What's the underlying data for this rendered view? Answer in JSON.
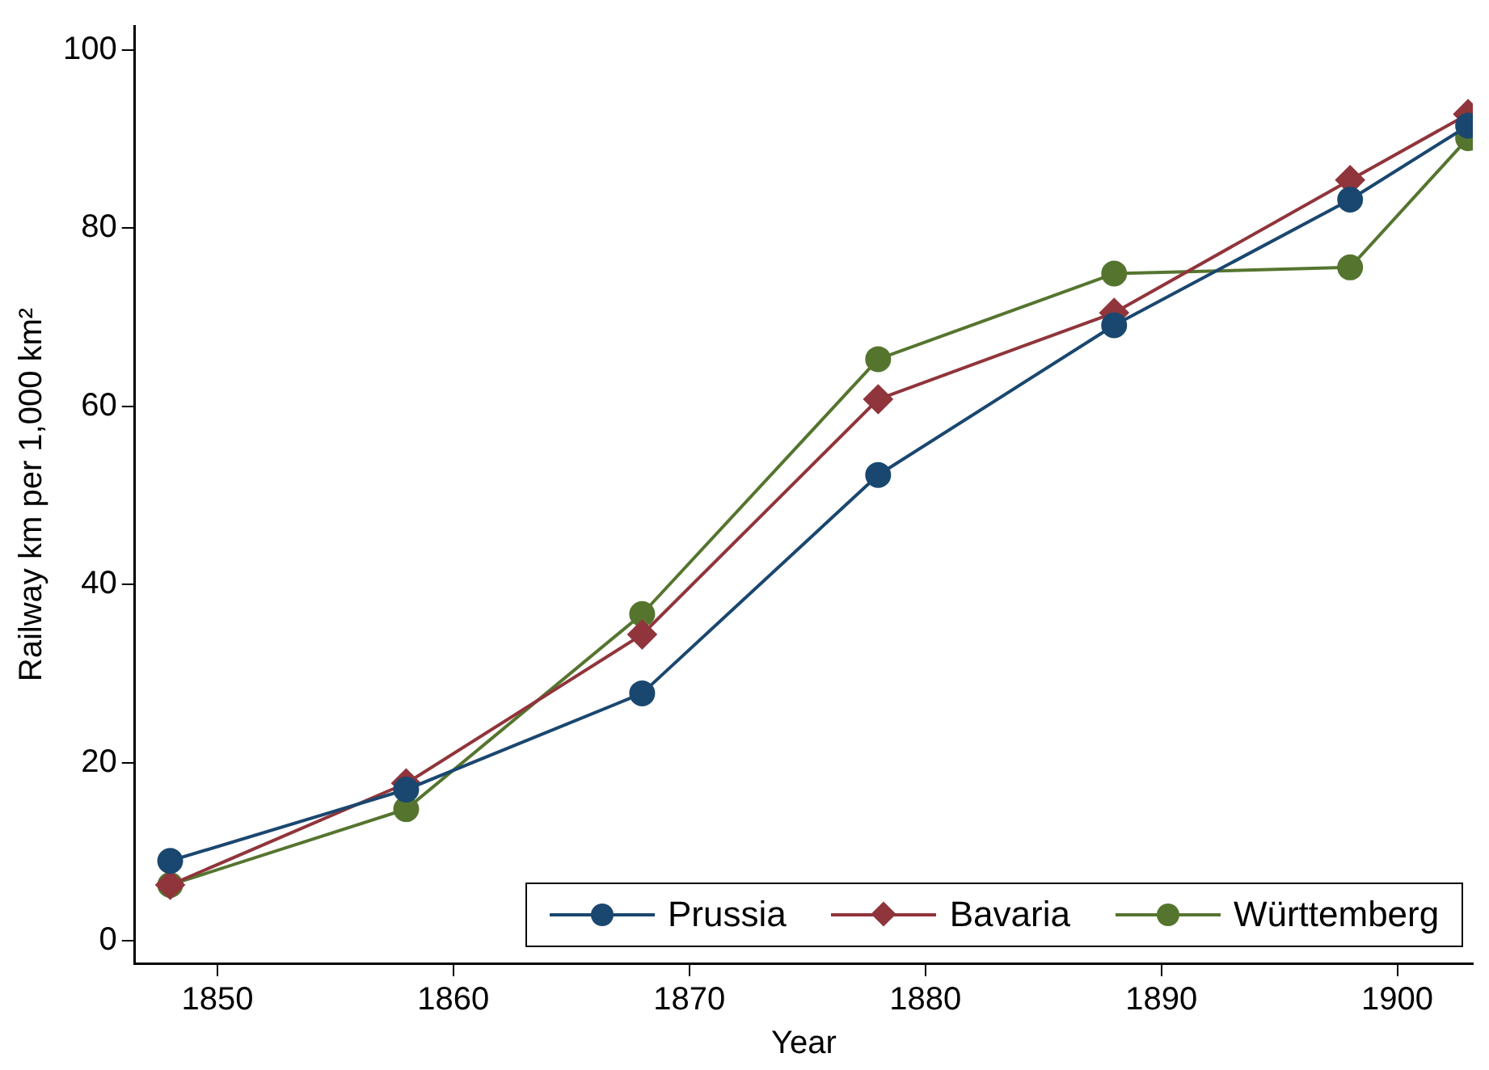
{
  "chart_data": {
    "type": "line",
    "xlabel": "Year",
    "ylabel": "Railway km per 1,000 km²",
    "x": [
      1848,
      1858,
      1868,
      1878,
      1888,
      1898,
      1903
    ],
    "xlim": [
      1846.5,
      1903.2
    ],
    "xticks": [
      1850,
      1860,
      1870,
      1880,
      1890,
      1900
    ],
    "ylim": [
      -2.5,
      102.7
    ],
    "yticks": [
      0,
      20,
      40,
      60,
      80,
      100
    ],
    "grid": false,
    "legend": "bottom right",
    "line_style": "solid",
    "series": [
      {
        "name": "Prussia",
        "color": "#1a476f",
        "marker": "circle",
        "values": [
          9.0,
          17.0,
          27.8,
          52.3,
          69.1,
          83.2,
          91.5
        ]
      },
      {
        "name": "Bavaria",
        "color": "#90353b",
        "marker": "diamond",
        "values": [
          6.3,
          17.7,
          34.4,
          60.8,
          70.5,
          85.4,
          92.8
        ]
      },
      {
        "name": "Württemberg",
        "color": "#55752f",
        "marker": "circle",
        "values": [
          6.3,
          14.8,
          36.7,
          65.3,
          74.9,
          75.6,
          90.1
        ]
      }
    ]
  }
}
